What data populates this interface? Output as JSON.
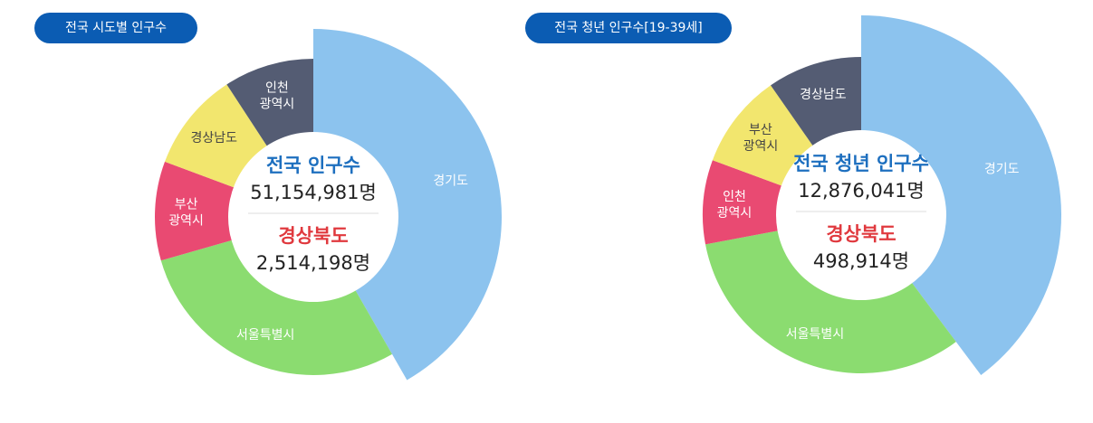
{
  "colors": {
    "pill_bg": "#0b5cb3",
    "title_blue": "#1d6fbf",
    "title_red": "#e0393e",
    "divider": "#dddddd"
  },
  "chart_data": [
    {
      "type": "pie",
      "title": "전국 시도별 인구수",
      "center": {
        "total_label": "전국 인구수",
        "total_value": "51,154,981명",
        "highlight_label": "경상북도",
        "highlight_value": "2,514,198명"
      },
      "slices": [
        {
          "label": "경기도",
          "lines": [
            "경기도"
          ],
          "value": 13.6,
          "color": "#8cc3ee",
          "text_color": "#ffffff"
        },
        {
          "label": "서울특별시",
          "lines": [
            "서울특별시"
          ],
          "value": 9.4,
          "color": "#8bdc70",
          "text_color": "#ffffff"
        },
        {
          "label": "부산광역시",
          "lines": [
            "부산",
            "광역시"
          ],
          "value": 3.3,
          "color": "#e94a72",
          "text_color": "#ffffff"
        },
        {
          "label": "경상남도",
          "lines": [
            "경상남도"
          ],
          "value": 3.3,
          "color": "#f2e66e",
          "text_color": "#444444"
        },
        {
          "label": "인천광역시",
          "lines": [
            "인천",
            "광역시"
          ],
          "value": 3.0,
          "color": "#545c73",
          "text_color": "#ffffff"
        }
      ]
    },
    {
      "type": "pie",
      "title": "전국 청년 인구수[19-39세]",
      "center": {
        "total_label": "전국 청년 인구수",
        "total_value": "12,876,041명",
        "highlight_label": "경상북도",
        "highlight_value": "498,914명"
      },
      "slices": [
        {
          "label": "경기도",
          "lines": [
            "경기도"
          ],
          "value": 3.7,
          "color": "#8cc3ee",
          "text_color": "#ffffff"
        },
        {
          "label": "서울특별시",
          "lines": [
            "서울특별시"
          ],
          "value": 3.0,
          "color": "#8bdc70",
          "text_color": "#ffffff"
        },
        {
          "label": "인천광역시",
          "lines": [
            "인천",
            "광역시"
          ],
          "value": 0.8,
          "color": "#e94a72",
          "text_color": "#ffffff"
        },
        {
          "label": "부산광역시",
          "lines": [
            "부산",
            "광역시"
          ],
          "value": 0.9,
          "color": "#f2e66e",
          "text_color": "#444444"
        },
        {
          "label": "경상남도",
          "lines": [
            "경상남도"
          ],
          "value": 0.9,
          "color": "#545c73",
          "text_color": "#ffffff"
        }
      ]
    }
  ]
}
